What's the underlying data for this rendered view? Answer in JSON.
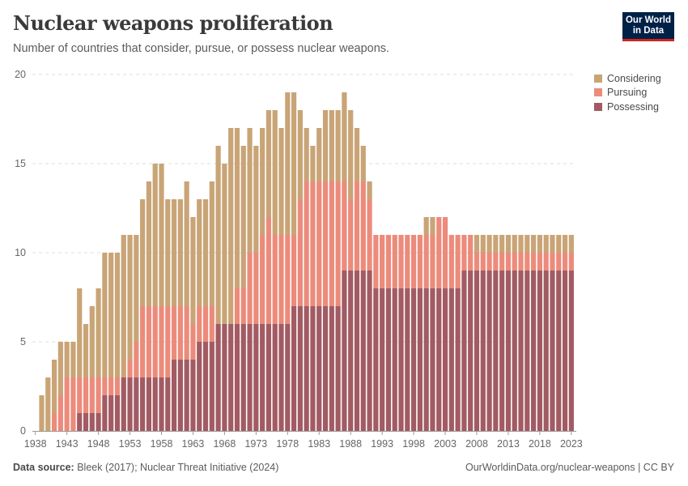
{
  "header": {
    "title": "Nuclear weapons proliferation",
    "subtitle": "Number of countries that consider, pursue, or possess nuclear weapons.",
    "logo_line1": "Our World",
    "logo_line2": "in Data"
  },
  "footer": {
    "source_label": "Data source:",
    "source_text": "Bleek (2017); Nuclear Threat Initiative (2024)",
    "url": "OurWorldinData.org/nuclear-weapons | CC BY"
  },
  "chart_data": {
    "type": "bar",
    "stacked": true,
    "title": "Nuclear weapons proliferation",
    "xlabel": "",
    "ylabel": "",
    "ylim": [
      0,
      20
    ],
    "yticks": [
      0,
      5,
      10,
      15,
      20
    ],
    "xticks": [
      1938,
      1943,
      1948,
      1953,
      1958,
      1963,
      1968,
      1973,
      1978,
      1983,
      1988,
      1993,
      1998,
      2003,
      2008,
      2013,
      2018,
      2023
    ],
    "grid": "horizontal dashed",
    "legend_position": "top-right",
    "x_start": 1938,
    "x_end": 2023,
    "series": [
      {
        "name": "Possessing",
        "color": "#a25b63",
        "values": [
          0,
          0,
          0,
          0,
          0,
          0,
          0,
          1,
          1,
          1,
          1,
          2,
          2,
          2,
          3,
          3,
          3,
          3,
          3,
          3,
          3,
          3,
          4,
          4,
          4,
          4,
          5,
          5,
          5,
          6,
          6,
          6,
          6,
          6,
          6,
          6,
          6,
          6,
          6,
          6,
          6,
          7,
          7,
          7,
          7,
          7,
          7,
          7,
          7,
          9,
          9,
          9,
          9,
          9,
          8,
          8,
          8,
          8,
          8,
          8,
          8,
          8,
          8,
          8,
          8,
          8,
          8,
          8,
          9,
          9,
          9,
          9,
          9,
          9,
          9,
          9,
          9,
          9,
          9,
          9,
          9,
          9,
          9,
          9,
          9,
          9
        ]
      },
      {
        "name": "Pursuing",
        "color": "#ec8b7b",
        "values": [
          0,
          0,
          0,
          1,
          2,
          3,
          3,
          2,
          2,
          2,
          2,
          1,
          1,
          1,
          0,
          1,
          2,
          4,
          4,
          4,
          4,
          4,
          3,
          3,
          3,
          2,
          2,
          2,
          2,
          0,
          0,
          0,
          2,
          2,
          4,
          4,
          5,
          6,
          5,
          5,
          5,
          4,
          6,
          7,
          7,
          7,
          7,
          7,
          7,
          5,
          4,
          5,
          5,
          4,
          3,
          3,
          3,
          3,
          3,
          3,
          3,
          3,
          3,
          3,
          4,
          4,
          3,
          3,
          2,
          2,
          1,
          1,
          1,
          1,
          1,
          1,
          1,
          1,
          1,
          1,
          1,
          1,
          1,
          1,
          1,
          1
        ]
      },
      {
        "name": "Considering",
        "color": "#c9a476",
        "values": [
          0,
          2,
          3,
          3,
          3,
          2,
          2,
          5,
          3,
          4,
          5,
          7,
          7,
          7,
          8,
          7,
          6,
          6,
          7,
          8,
          8,
          6,
          6,
          6,
          7,
          6,
          6,
          6,
          7,
          10,
          9,
          11,
          9,
          8,
          7,
          6,
          6,
          6,
          7,
          6,
          8,
          8,
          5,
          3,
          2,
          3,
          4,
          4,
          4,
          5,
          5,
          3,
          2,
          1,
          0,
          0,
          0,
          0,
          0,
          0,
          0,
          0,
          1,
          1,
          0,
          0,
          0,
          0,
          0,
          0,
          1,
          1,
          1,
          1,
          1,
          1,
          1,
          1,
          1,
          1,
          1,
          1,
          1,
          1,
          1,
          1
        ]
      }
    ]
  }
}
